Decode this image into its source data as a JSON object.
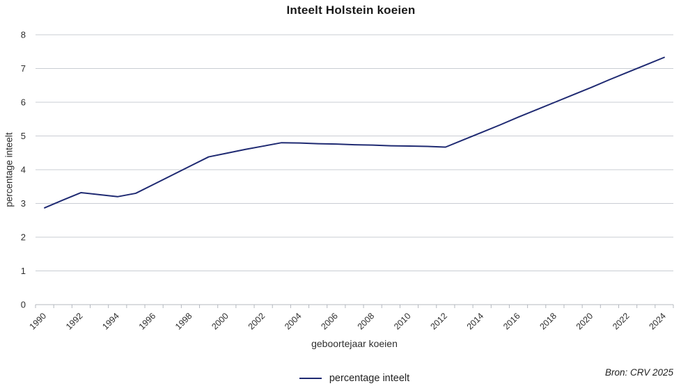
{
  "chart_data": {
    "type": "line",
    "title": "Inteelt Holstein koeien",
    "xlabel": "geboortejaar koeien",
    "ylabel": "percentage inteelt",
    "x": [
      1990,
      1991,
      1992,
      1993,
      1994,
      1995,
      1996,
      1997,
      1998,
      1999,
      2000,
      2001,
      2002,
      2003,
      2004,
      2005,
      2006,
      2007,
      2008,
      2009,
      2010,
      2011,
      2012,
      2013,
      2014,
      2015,
      2016,
      2017,
      2018,
      2019,
      2020,
      2021,
      2022,
      2023,
      2024
    ],
    "series": [
      {
        "name": "percentage inteelt",
        "color": "#1f2a72",
        "values": [
          2.87,
          3.1,
          3.32,
          3.26,
          3.2,
          3.3,
          3.57,
          3.84,
          4.11,
          4.38,
          4.49,
          4.6,
          4.7,
          4.8,
          4.79,
          4.77,
          4.76,
          4.74,
          4.73,
          4.71,
          4.7,
          4.69,
          4.67,
          4.89,
          5.11,
          5.33,
          5.56,
          5.78,
          6.0,
          6.22,
          6.44,
          6.67,
          6.89,
          7.11,
          7.33
        ]
      }
    ],
    "ylim": [
      0,
      8
    ],
    "yticks": [
      0,
      1,
      2,
      3,
      4,
      5,
      6,
      7,
      8
    ],
    "xtick_labels": [
      1990,
      1992,
      1994,
      1996,
      1998,
      2000,
      2002,
      2004,
      2006,
      2008,
      2010,
      2012,
      2014,
      2016,
      2018,
      2020,
      2022,
      2024
    ],
    "grid": "horizontal",
    "legend_position": "bottom-center"
  },
  "source": "Bron: CRV 2025",
  "colors": {
    "line": "#1f2a72",
    "grid": "#c9cdd3",
    "axis": "#b4b8bf",
    "tick_text": "#2e2e2e",
    "title_text": "#1a1a1a"
  }
}
